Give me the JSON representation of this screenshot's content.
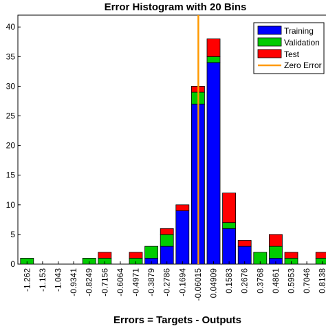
{
  "chart_data": {
    "type": "bar",
    "stacked": true,
    "title": "Error Histogram with 20 Bins",
    "xlabel": "Errors = Targets - Outputs",
    "ylabel": "",
    "ylim": [
      0,
      42
    ],
    "yticks": [
      0,
      5,
      10,
      15,
      20,
      25,
      30,
      35,
      40
    ],
    "categories": [
      "-1.262",
      "-1.153",
      "-1.043",
      "-0.9341",
      "-0.8249",
      "-0.7156",
      "-0.6064",
      "-0.4971",
      "-0.3879",
      "-0.2786",
      "-0.1694",
      "-0.06015",
      "0.04909",
      "0.1583",
      "0.2676",
      "0.3768",
      "0.4861",
      "0.5953",
      "0.7046",
      "0.8138"
    ],
    "series": [
      {
        "name": "Training",
        "color": "#0000ff",
        "values": [
          0,
          0,
          0,
          0,
          0,
          0,
          0,
          0,
          1,
          3,
          9,
          27,
          34,
          6,
          3,
          0,
          1,
          0,
          0,
          0
        ]
      },
      {
        "name": "Validation",
        "color": "#00cc00",
        "values": [
          1,
          0,
          0,
          0,
          1,
          1,
          0,
          1,
          2,
          2,
          0,
          2,
          1,
          1,
          0,
          2,
          2,
          1,
          0,
          1
        ]
      },
      {
        "name": "Test",
        "color": "#ff0000",
        "values": [
          0,
          0,
          0,
          0,
          0,
          1,
          0,
          1,
          0,
          1,
          1,
          1,
          3,
          5,
          1,
          0,
          2,
          1,
          0,
          1
        ]
      }
    ],
    "zero_error": {
      "name": "Zero Error",
      "color": "#ff9900",
      "x_bin_position": 11.5
    },
    "legend_placement": "top-right",
    "grid": false
  }
}
